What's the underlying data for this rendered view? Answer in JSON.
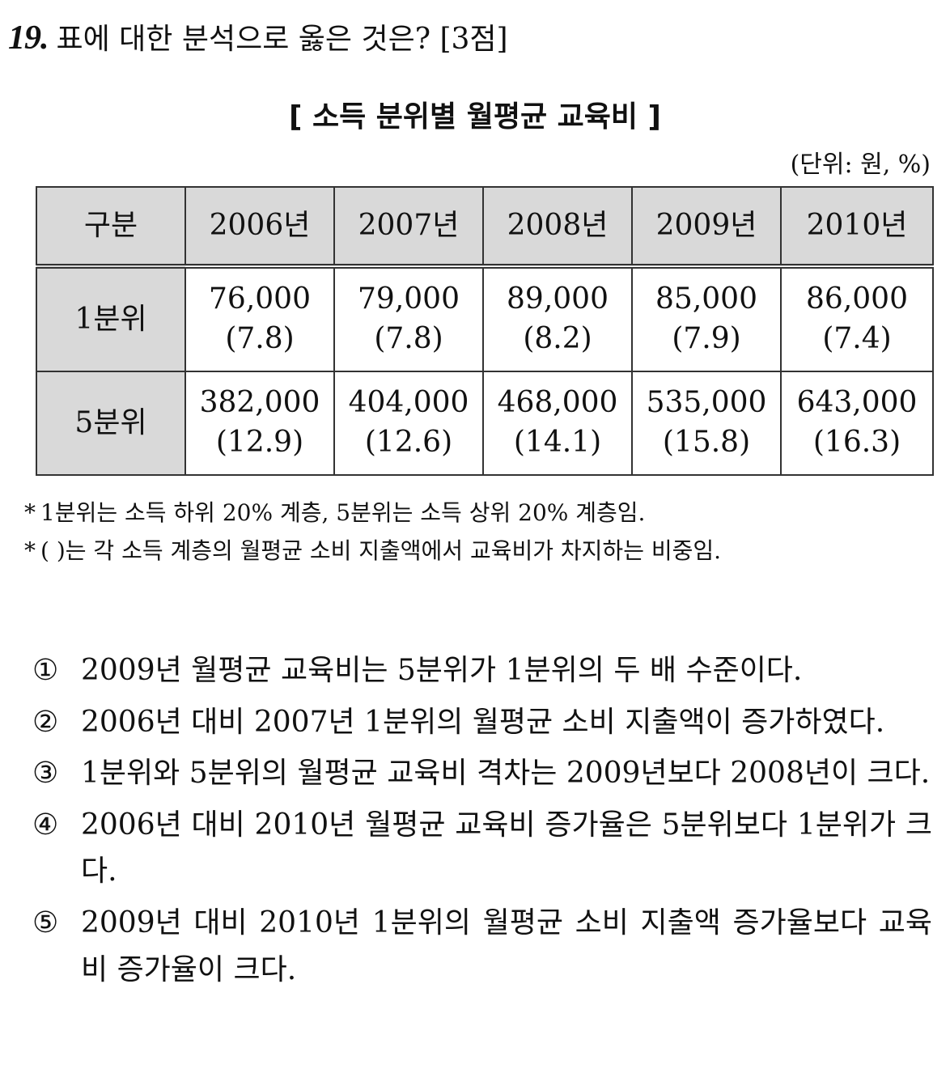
{
  "question": {
    "number": "19.",
    "text": "표에 대한 분석으로 옳은 것은? [3점]"
  },
  "table_title": "[ 소득 분위별 월평균 교육비 ]",
  "unit": "(단위: 원, %)",
  "table": {
    "headers": [
      "구분",
      "2006년",
      "2007년",
      "2008년",
      "2009년",
      "2010년"
    ],
    "rows": [
      {
        "label": "1분위",
        "cells": [
          {
            "amount": "76,000",
            "ratio": "(7.8)"
          },
          {
            "amount": "79,000",
            "ratio": "(7.8)"
          },
          {
            "amount": "89,000",
            "ratio": "(8.2)"
          },
          {
            "amount": "85,000",
            "ratio": "(7.9)"
          },
          {
            "amount": "86,000",
            "ratio": "(7.4)"
          }
        ]
      },
      {
        "label": "5분위",
        "cells": [
          {
            "amount": "382,000",
            "ratio": "(12.9)"
          },
          {
            "amount": "404,000",
            "ratio": "(12.6)"
          },
          {
            "amount": "468,000",
            "ratio": "(14.1)"
          },
          {
            "amount": "535,000",
            "ratio": "(15.8)"
          },
          {
            "amount": "643,000",
            "ratio": "(16.3)"
          }
        ]
      }
    ]
  },
  "notes": [
    {
      "mark": "*",
      "text": "1분위는 소득 하위 20% 계층, 5분위는 소득 상위 20% 계층임."
    },
    {
      "mark": "*",
      "text": "(    )는 각 소득 계층의 월평균 소비 지출액에서 교육비가 차지하는 비중임."
    }
  ],
  "options": [
    {
      "num": "①",
      "text": "2009년 월평균 교육비는 5분위가 1분위의 두 배 수준이다."
    },
    {
      "num": "②",
      "text": "2006년 대비 2007년 1분위의 월평균 소비 지출액이 증가하였다."
    },
    {
      "num": "③",
      "text": "1분위와 5분위의 월평균 교육비 격차는 2009년보다 2008년이 크다."
    },
    {
      "num": "④",
      "text": "2006년 대비 2010년 월평균 교육비 증가율은 5분위보다 1분위가 크다."
    },
    {
      "num": "⑤",
      "text": "2009년 대비 2010년 1분위의 월평균 소비 지출액 증가율보다 교육비 증가율이 크다."
    }
  ]
}
